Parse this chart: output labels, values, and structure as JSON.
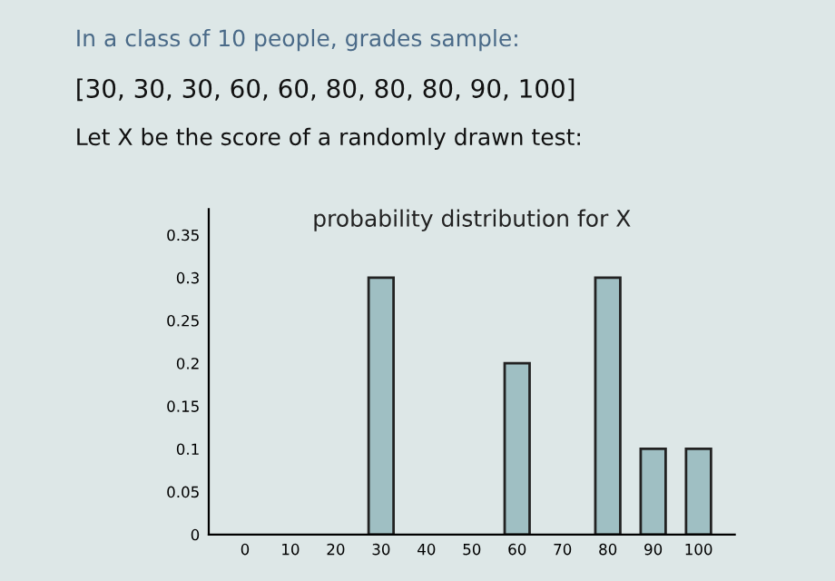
{
  "chart_data": {
    "type": "bar",
    "title": "probability distribution for X",
    "annotations": [
      "In a class of 10 people, grades sample:",
      "[30, 30, 30, 60, 60, 80, 80, 80, 90, 100]",
      "Let X be the score of a randomly drawn test:"
    ],
    "categories": [
      "0",
      "10",
      "20",
      "30",
      "40",
      "50",
      "60",
      "70",
      "80",
      "90",
      "100"
    ],
    "values": [
      null,
      null,
      null,
      0.3,
      null,
      null,
      0.2,
      null,
      0.3,
      0.1,
      0.1
    ],
    "color": "#9fbfc3",
    "ylim": [
      0,
      0.38
    ],
    "yticks": [
      0,
      0.05,
      0.1,
      0.15,
      0.2,
      0.25,
      0.3,
      0.35
    ],
    "grid": false
  }
}
